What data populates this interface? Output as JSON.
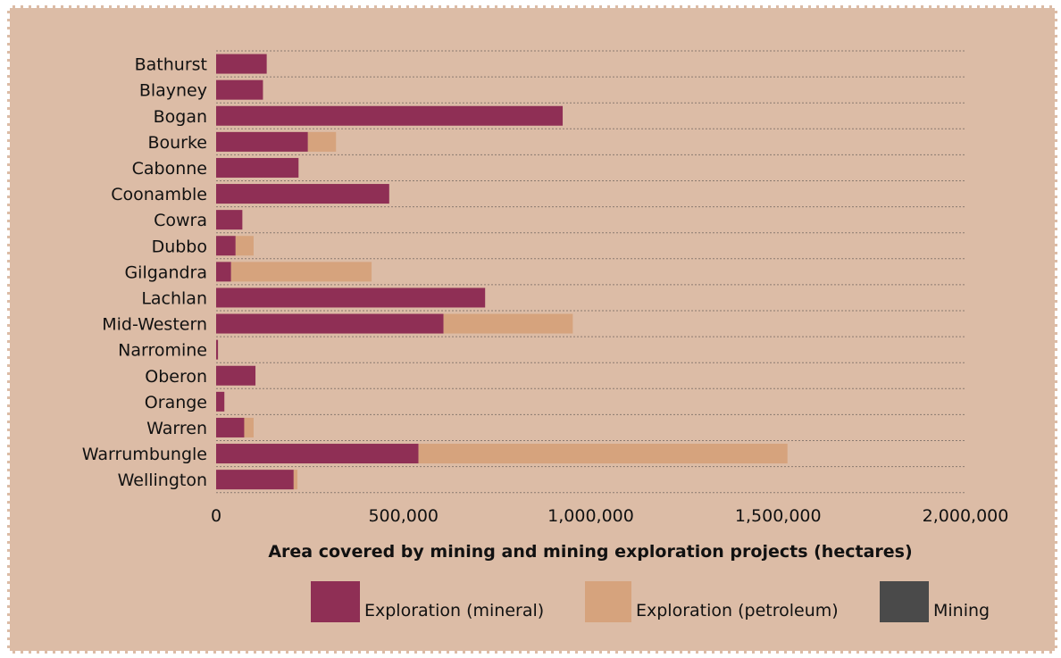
{
  "chart_data": {
    "type": "bar",
    "orientation": "horizontal",
    "stacked": true,
    "categories": [
      "Bathurst",
      "Blayney",
      "Bogan",
      "Bourke",
      "Cabonne",
      "Coonamble",
      "Cowra",
      "Dubbo",
      "Gilgandra",
      "Lachlan",
      "Mid-Western",
      "Narromine",
      "Oberon",
      "Orange",
      "Warren",
      "Warrumbungle",
      "Wellington"
    ],
    "series": [
      {
        "name": "Exploration (mineral)",
        "color": "#8f2f55",
        "values": [
          135000,
          125000,
          925000,
          245000,
          220000,
          462000,
          70000,
          52000,
          40000,
          718000,
          607000,
          5000,
          105000,
          22000,
          75000,
          540000,
          207000
        ]
      },
      {
        "name": "Exploration (petroleum)",
        "color": "#d6a37d",
        "values": [
          0,
          0,
          0,
          75000,
          0,
          0,
          0,
          48000,
          375000,
          0,
          345000,
          0,
          0,
          0,
          25000,
          985000,
          10000
        ]
      },
      {
        "name": "Mining",
        "color": "#4a4a4a",
        "values": [
          0,
          0,
          0,
          0,
          0,
          0,
          0,
          0,
          0,
          0,
          0,
          0,
          0,
          0,
          0,
          0,
          0
        ]
      }
    ],
    "xlim": [
      0,
      2000000
    ],
    "x_ticks": [
      0,
      500000,
      1000000,
      1500000,
      2000000
    ],
    "x_tick_labels": [
      "0",
      "500,000",
      "1,000,000",
      "1,500,000",
      "2,000,000"
    ],
    "xlabel": "Area covered by mining and mining exploration projects (hectares)",
    "grid": "horizontal dotted",
    "legend_position": "bottom"
  }
}
